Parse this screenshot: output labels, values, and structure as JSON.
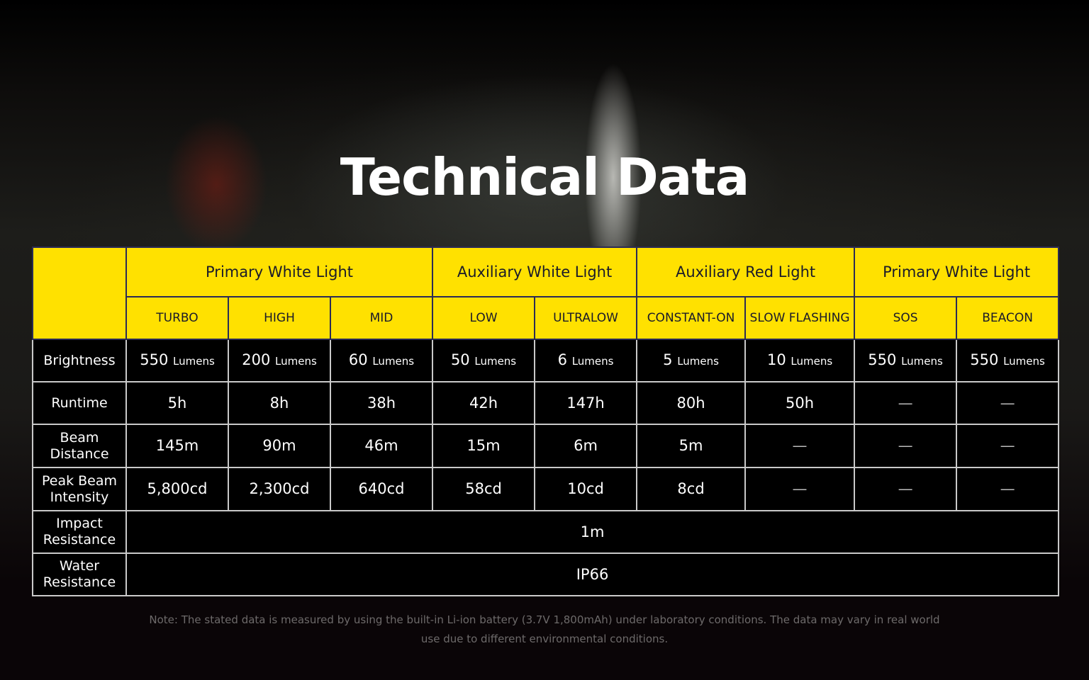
{
  "title": "Technical Data",
  "accent_color": "#ffe100",
  "groups": [
    {
      "label": "Primary White Light",
      "span": 3
    },
    {
      "label": "Auxiliary White Light",
      "span": 2
    },
    {
      "label": "Auxiliary Red Light",
      "span": 2
    },
    {
      "label": "Primary White Light",
      "span": 2
    }
  ],
  "modes": [
    "TURBO",
    "HIGH",
    "MID",
    "LOW",
    "ULTRALOW",
    "CONSTANT-ON",
    "SLOW FLASHING",
    "SOS",
    "BEACON"
  ],
  "rows": [
    {
      "label": "Brightness",
      "unit": "Lumens",
      "cells": [
        "550",
        "200",
        "60",
        "50",
        "6",
        "5",
        "10",
        "550",
        "550"
      ]
    },
    {
      "label": "Runtime",
      "cells": [
        "5h",
        "8h",
        "38h",
        "42h",
        "147h",
        "80h",
        "50h",
        "—",
        "—"
      ]
    },
    {
      "label": "Beam Distance",
      "cells": [
        "145m",
        "90m",
        "46m",
        "15m",
        "6m",
        "5m",
        "—",
        "—",
        "—"
      ]
    },
    {
      "label": "Peak Beam Intensity",
      "cells": [
        "5,800cd",
        "2,300cd",
        "640cd",
        "58cd",
        "10cd",
        "8cd",
        "—",
        "—",
        "—"
      ]
    },
    {
      "label": "Impact Resistance",
      "merged": "1m"
    },
    {
      "label": "Water Resistance",
      "merged": "IP66"
    }
  ],
  "note": "Note: The stated data is measured by using the built-in Li-ion battery (3.7V 1,800mAh) under laboratory conditions. The data may vary in real world use due to different environmental conditions."
}
